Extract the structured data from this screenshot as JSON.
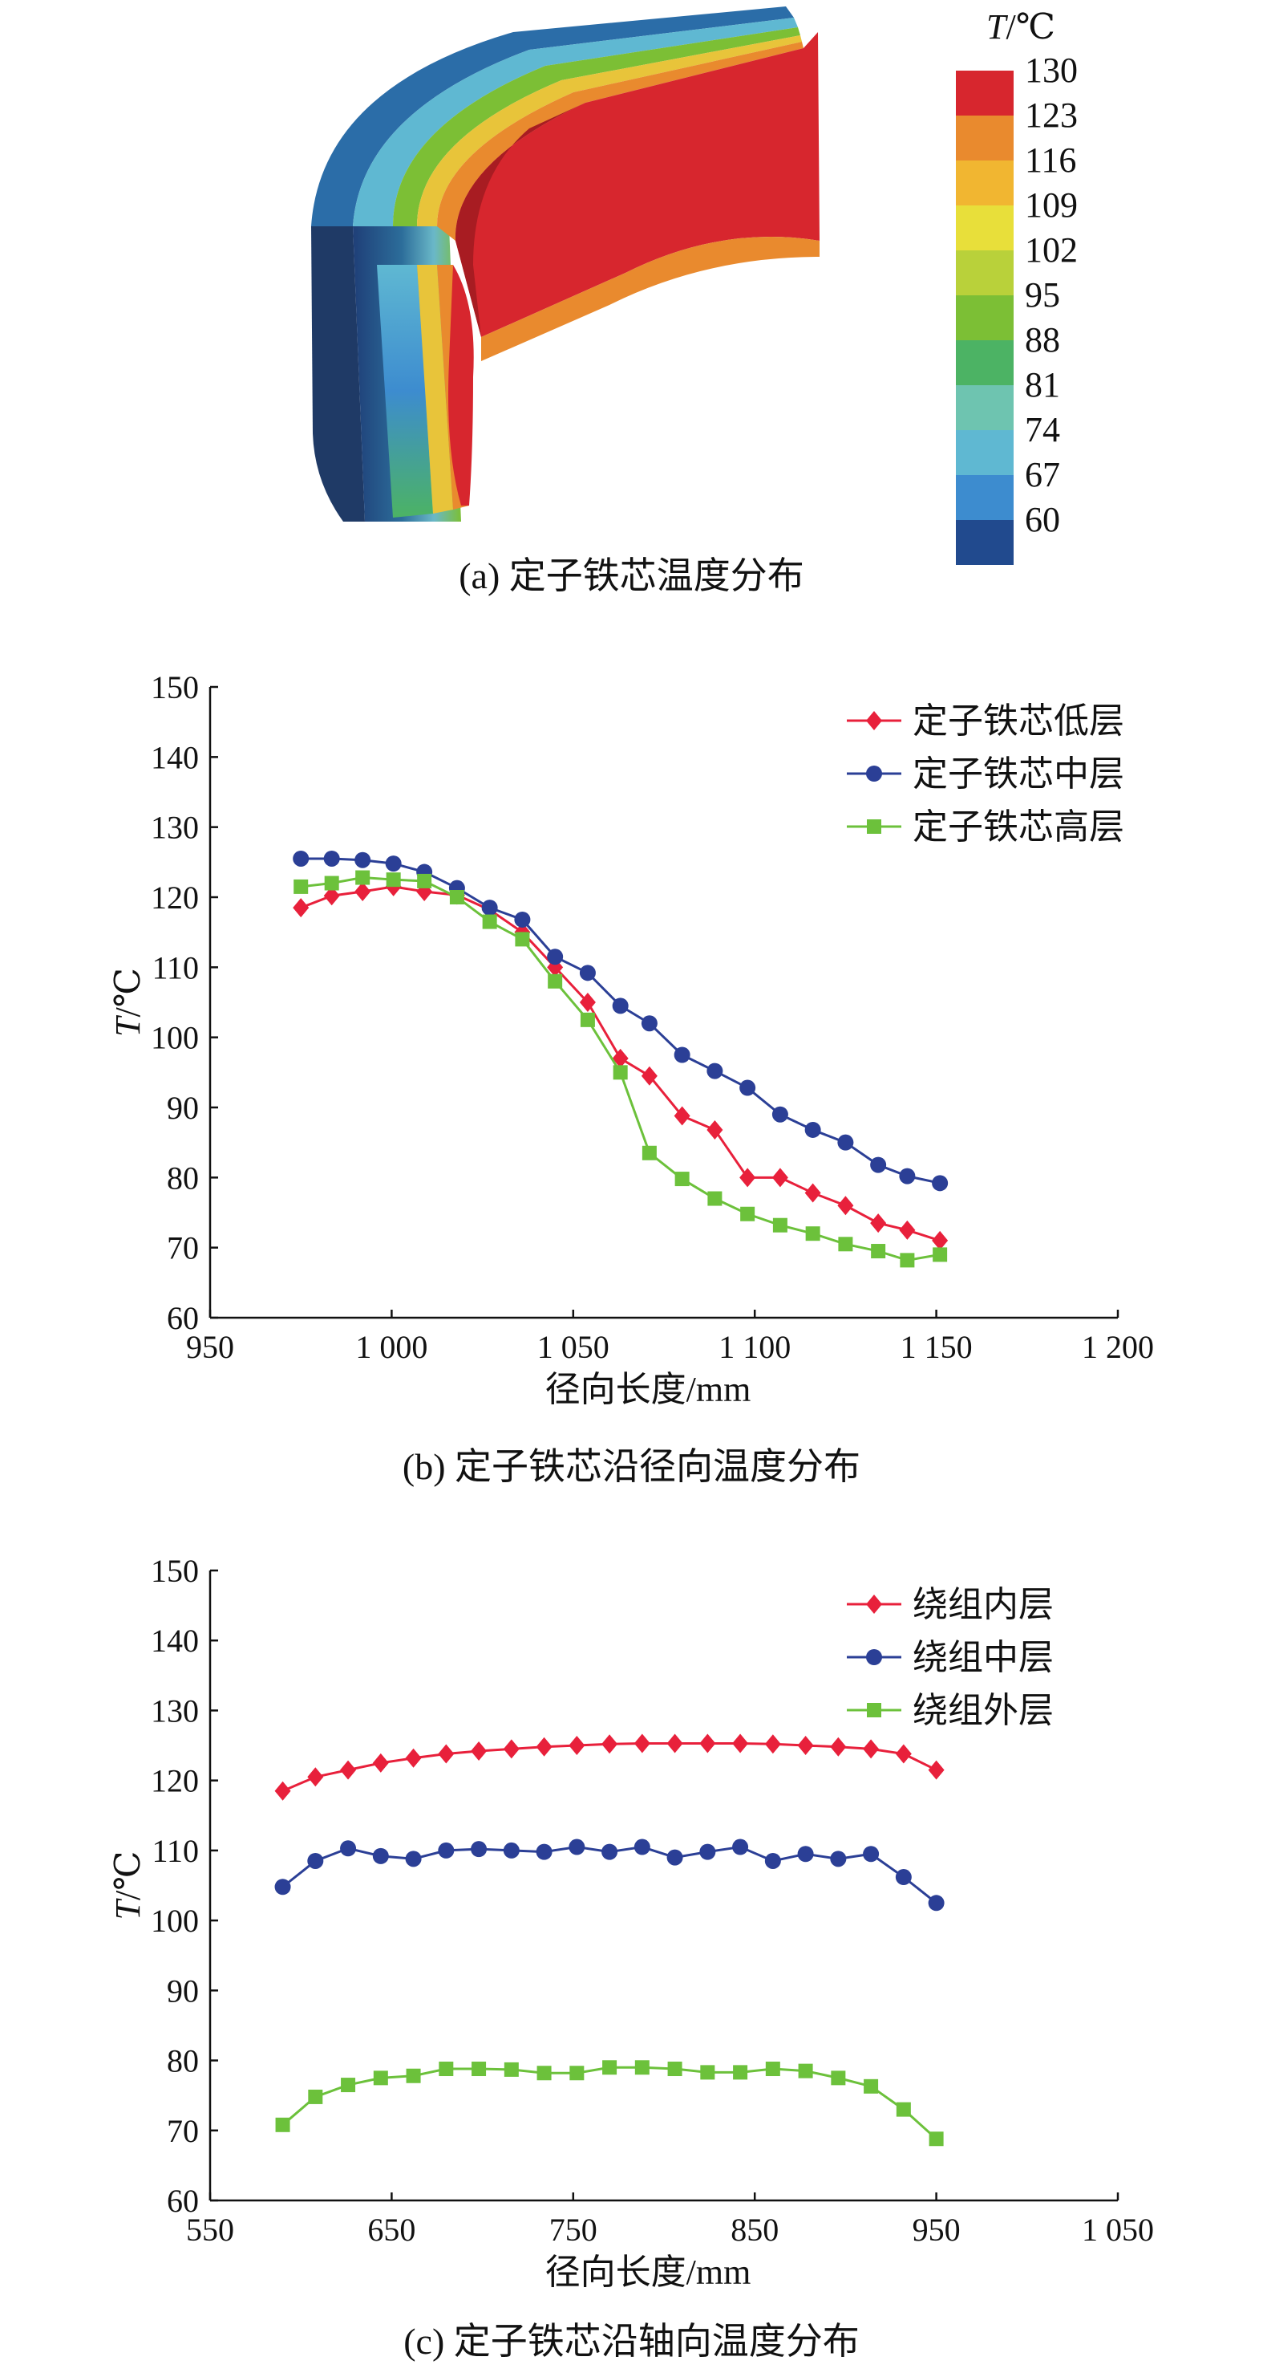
{
  "colorbar": {
    "title_var": "T",
    "title_unit": "/℃",
    "ticks": [
      "130",
      "123",
      "116",
      "109",
      "102",
      "95",
      "88",
      "81",
      "74",
      "67",
      "60"
    ],
    "colors": [
      "#d7262e",
      "#e98a2e",
      "#f1b631",
      "#e8df3a",
      "#b9d13a",
      "#7cbf35",
      "#4cb364",
      "#6ec4b0",
      "#5fb8d2",
      "#3d8ccf",
      "#214a8e"
    ]
  },
  "captions": {
    "a": "(a) 定子铁芯温度分布",
    "b": "(b) 定子铁芯沿径向温度分布",
    "c": "(c) 定子铁芯沿轴向温度分布"
  },
  "chart_data": [
    {
      "type": "line",
      "xlabel": "径向长度/mm",
      "ylabel_var": "T",
      "ylabel_unit": "/℃",
      "xlim": [
        950,
        1200
      ],
      "ylim": [
        60,
        150
      ],
      "xticks": [
        950,
        1000,
        1050,
        1100,
        1150,
        1200
      ],
      "xtick_labels": [
        "950",
        "1 000",
        "1 050",
        "1 100",
        "1 150",
        "1 200"
      ],
      "yticks": [
        60,
        70,
        80,
        90,
        100,
        110,
        120,
        130,
        140,
        150
      ],
      "legend_position": "top-right",
      "x": [
        975,
        983.5,
        992,
        1000.5,
        1009,
        1018,
        1027,
        1036,
        1045,
        1054,
        1063,
        1071,
        1080,
        1089,
        1098,
        1107,
        1116,
        1125,
        1134,
        1142,
        1151
      ],
      "series": [
        {
          "name": "定子铁芯低层",
          "color": "#e8203b",
          "marker": "diamond",
          "values": [
            118.5,
            120.2,
            120.8,
            121.5,
            120.8,
            120.3,
            118.2,
            115.0,
            110.0,
            105.0,
            97.0,
            94.5,
            88.8,
            86.8,
            80.0,
            80.0,
            77.8,
            76.0,
            73.5,
            72.5,
            71.0
          ]
        },
        {
          "name": "定子铁芯中层",
          "color": "#2b3f96",
          "marker": "circle",
          "values": [
            125.5,
            125.5,
            125.3,
            124.8,
            123.6,
            121.3,
            118.5,
            116.8,
            111.5,
            109.2,
            104.5,
            102.0,
            97.5,
            95.2,
            92.8,
            89.0,
            86.8,
            85.0,
            81.8,
            80.2,
            79.2
          ]
        },
        {
          "name": "定子铁芯高层",
          "color": "#6cc13b",
          "marker": "square",
          "values": [
            121.5,
            122.0,
            122.8,
            122.5,
            122.3,
            120.0,
            116.5,
            114.0,
            108.0,
            102.5,
            95.0,
            83.5,
            79.8,
            77.0,
            74.8,
            73.2,
            72.0,
            70.5,
            69.5,
            68.2,
            69.0
          ]
        }
      ]
    },
    {
      "type": "line",
      "xlabel": "径向长度/mm",
      "ylabel_var": "T",
      "ylabel_unit": "/℃",
      "xlim": [
        550,
        1050
      ],
      "ylim": [
        60,
        150
      ],
      "xticks": [
        550,
        650,
        750,
        850,
        950,
        1050
      ],
      "xtick_labels": [
        "550",
        "650",
        "750",
        "850",
        "950",
        "1 050"
      ],
      "yticks": [
        60,
        70,
        80,
        90,
        100,
        110,
        120,
        130,
        140,
        150
      ],
      "legend_position": "top-right",
      "x": [
        590,
        608,
        626,
        644,
        662,
        680,
        698,
        716,
        734,
        752,
        770,
        788,
        806,
        824,
        842,
        860,
        878,
        896,
        914,
        932,
        950
      ],
      "series": [
        {
          "name": "绕组内层",
          "color": "#e8203b",
          "marker": "diamond",
          "values": [
            118.5,
            120.5,
            121.5,
            122.5,
            123.2,
            123.8,
            124.2,
            124.5,
            124.8,
            125.0,
            125.2,
            125.3,
            125.3,
            125.3,
            125.3,
            125.2,
            125.0,
            124.8,
            124.5,
            123.8,
            121.5
          ]
        },
        {
          "name": "绕组中层",
          "color": "#2b3f96",
          "marker": "circle",
          "values": [
            104.8,
            108.5,
            110.3,
            109.2,
            108.8,
            110.0,
            110.2,
            110.0,
            109.8,
            110.5,
            109.8,
            110.5,
            109.0,
            109.8,
            110.5,
            108.5,
            109.5,
            108.8,
            109.5,
            106.2,
            102.5
          ]
        },
        {
          "name": "绕组外层",
          "color": "#6cc13b",
          "marker": "square",
          "values": [
            70.8,
            74.8,
            76.5,
            77.5,
            77.8,
            78.8,
            78.8,
            78.7,
            78.2,
            78.2,
            79.0,
            79.0,
            78.8,
            78.3,
            78.3,
            78.8,
            78.5,
            77.5,
            76.3,
            73.0,
            68.8
          ]
        }
      ]
    }
  ]
}
